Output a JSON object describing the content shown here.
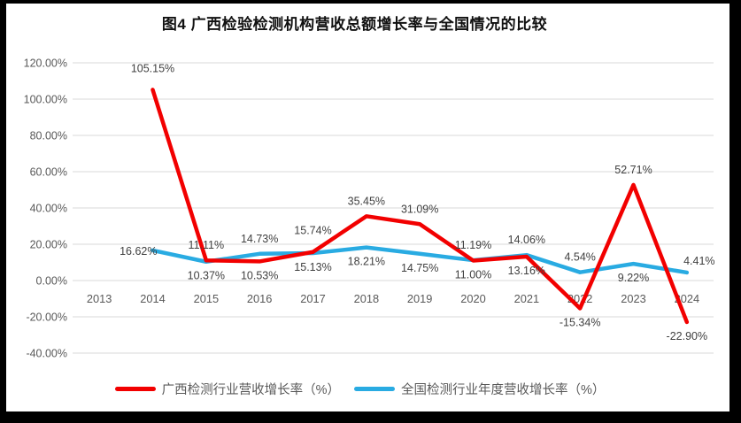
{
  "title": "图4 广西检验检测机构营收总额增长率与全国情况的比较",
  "colors": {
    "guangxi_line": "#f20000",
    "national_line": "#29abe2",
    "grid": "#d9d9d9",
    "axis_text": "#595959",
    "data_label": "#404040",
    "frame": "#000000",
    "background": "#ffffff"
  },
  "chart_data": {
    "type": "line",
    "title": "图4 广西检验检测机构营收总额增长率与全国情况的比较",
    "categories": [
      "2013",
      "2014",
      "2015",
      "2016",
      "2017",
      "2018",
      "2019",
      "2020",
      "2021",
      "2022",
      "2023",
      "2024"
    ],
    "ylim": [
      -40,
      120
    ],
    "grid": true,
    "legend_position": "bottom",
    "yticks": [
      {
        "value": 120,
        "label": "120.00%"
      },
      {
        "value": 100,
        "label": "100.00%"
      },
      {
        "value": 80,
        "label": "80.00%"
      },
      {
        "value": 60,
        "label": "60.00%"
      },
      {
        "value": 40,
        "label": "40.00%"
      },
      {
        "value": 20,
        "label": "20.00%"
      },
      {
        "value": 0,
        "label": "0.00%"
      },
      {
        "value": -20,
        "label": "-20.00%"
      },
      {
        "value": -40,
        "label": "-40.00%"
      }
    ],
    "series": [
      {
        "name": "广西检测行业营收增长率（%）",
        "color": "#f20000",
        "points": [
          {
            "category": "2014",
            "value": 105.15,
            "label": "105.15%",
            "label_pos": "above",
            "label_dy": -7
          },
          {
            "category": "2015",
            "value": 11.11,
            "label": "11.11%",
            "label_pos": "above"
          },
          {
            "category": "2016",
            "value": 10.53,
            "label": "10.53%",
            "label_pos": "below"
          },
          {
            "category": "2017",
            "value": 15.74,
            "label": "15.74%",
            "label_pos": "above",
            "label_dy": -7
          },
          {
            "category": "2018",
            "value": 35.45,
            "label": "35.45%",
            "label_pos": "above"
          },
          {
            "category": "2019",
            "value": 31.09,
            "label": "31.09%",
            "label_pos": "above"
          },
          {
            "category": "2020",
            "value": 11.0,
            "label": "11.00%",
            "label_pos": "below"
          },
          {
            "category": "2021",
            "value": 13.16,
            "label": "13.16%",
            "label_pos": "below"
          },
          {
            "category": "2022",
            "value": -15.34,
            "label": "-15.34%",
            "label_pos": "below"
          },
          {
            "category": "2023",
            "value": 52.71,
            "label": "52.71%",
            "label_pos": "above"
          },
          {
            "category": "2024",
            "value": -22.9,
            "label": "-22.90%",
            "label_pos": "below"
          }
        ]
      },
      {
        "name": "全国检测行业年度营收增长率（%）",
        "color": "#29abe2",
        "points": [
          {
            "category": "2014",
            "value": 16.62,
            "label": "16.62%",
            "label_pos": "left"
          },
          {
            "category": "2015",
            "value": 10.37,
            "label": "10.37%",
            "label_pos": "below"
          },
          {
            "category": "2016",
            "value": 14.73,
            "label": "14.73%",
            "label_pos": "above"
          },
          {
            "category": "2017",
            "value": 15.13,
            "label": "15.13%",
            "label_pos": "below"
          },
          {
            "category": "2018",
            "value": 18.21,
            "label": "18.21%",
            "label_pos": "below"
          },
          {
            "category": "2019",
            "value": 14.75,
            "label": "14.75%",
            "label_pos": "below"
          },
          {
            "category": "2020",
            "value": 11.19,
            "label": "11.19%",
            "label_pos": "above"
          },
          {
            "category": "2021",
            "value": 14.06,
            "label": "14.06%",
            "label_pos": "above"
          },
          {
            "category": "2022",
            "value": 4.54,
            "label": "4.54%",
            "label_pos": "above"
          },
          {
            "category": "2023",
            "value": 9.22,
            "label": "9.22%",
            "label_pos": "below"
          },
          {
            "category": "2024",
            "value": 4.41,
            "label": "4.41%",
            "label_pos": "above-right"
          }
        ]
      }
    ]
  },
  "legend": {
    "items": [
      {
        "label": "广西检测行业营收增长率（%）",
        "color": "#f20000"
      },
      {
        "label": "全国检测行业年度营收增长率（%）",
        "color": "#29abe2"
      }
    ]
  }
}
